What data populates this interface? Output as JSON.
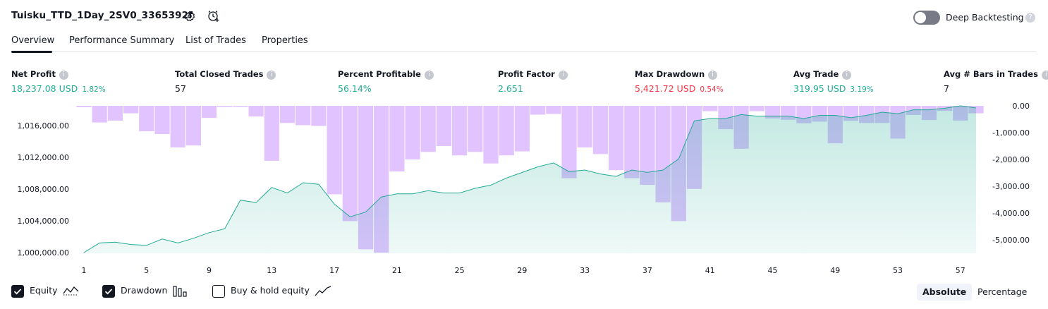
{
  "header": {
    "strategy_title": "Tuisku_TTD_1Day_2SV0_3365392f",
    "deep_backtesting_label": "Deep Backtesting",
    "deep_backtesting_enabled": false,
    "help_glyph": "?"
  },
  "tabs": [
    {
      "label": "Overview",
      "active": true
    },
    {
      "label": "Performance Summary",
      "active": false
    },
    {
      "label": "List of Trades",
      "active": false
    },
    {
      "label": "Properties",
      "active": false
    }
  ],
  "metrics": [
    {
      "label": "Net Profit",
      "value": "18,237.08 USD",
      "pct": "1.82%",
      "color": "#22ab94"
    },
    {
      "label": "Total Closed Trades",
      "value": "57",
      "pct": "",
      "color": "#131722"
    },
    {
      "label": "Percent Profitable",
      "value": "56.14%",
      "pct": "",
      "color": "#22ab94"
    },
    {
      "label": "Profit Factor",
      "value": "2.651",
      "pct": "",
      "color": "#22ab94"
    },
    {
      "label": "Max Drawdown",
      "value": "5,421.72 USD",
      "pct": "0.54%",
      "color": "#f23645"
    },
    {
      "label": "Avg Trade",
      "value": "319.95 USD",
      "pct": "3.19%",
      "color": "#22ab94"
    },
    {
      "label": "Avg # Bars in Trades",
      "value": "7",
      "pct": "",
      "color": "#131722"
    }
  ],
  "chart_data": {
    "type": "line",
    "x_ticks": [
      "1",
      "5",
      "9",
      "13",
      "17",
      "21",
      "25",
      "29",
      "33",
      "37",
      "41",
      "45",
      "49",
      "53",
      "57"
    ],
    "left_axis": {
      "ticks": [
        "1,016,000.00",
        "1,012,000.00",
        "1,008,000.00",
        "1,004,000.00",
        "1,000,000.00"
      ],
      "ylim": [
        999900,
        1018500
      ]
    },
    "right_axis": {
      "ticks": [
        "0.00",
        "-1,000.00",
        "-2,000.00",
        "-3,000.00",
        "-4,000.00",
        "-5,000.00"
      ],
      "ylim": [
        -5500,
        0
      ]
    },
    "series": [
      {
        "name": "Equity",
        "color": "#22ab94",
        "x": [
          1,
          2,
          3,
          4,
          5,
          6,
          7,
          8,
          9,
          10,
          11,
          12,
          13,
          14,
          15,
          16,
          17,
          18,
          19,
          20,
          21,
          22,
          23,
          24,
          25,
          26,
          27,
          28,
          29,
          30,
          31,
          32,
          33,
          34,
          35,
          36,
          37,
          38,
          39,
          40,
          41,
          42,
          43,
          44,
          45,
          46,
          47,
          48,
          49,
          50,
          51,
          52,
          53,
          54,
          55,
          56,
          57,
          58
        ],
        "values": [
          1000000,
          1001200,
          1001300,
          1001000,
          1000900,
          1001700,
          1001200,
          1001800,
          1002500,
          1003000,
          1006600,
          1006300,
          1008200,
          1007500,
          1008800,
          1008600,
          1006100,
          1004500,
          1005100,
          1007000,
          1007400,
          1007400,
          1007800,
          1007500,
          1007500,
          1008100,
          1008500,
          1009400,
          1010100,
          1010800,
          1011300,
          1010200,
          1010400,
          1009900,
          1009600,
          1010400,
          1010100,
          1010400,
          1011800,
          1016600,
          1016900,
          1016900,
          1017400,
          1017200,
          1017200,
          1017200,
          1016900,
          1017300,
          1017300,
          1017000,
          1017300,
          1017700,
          1017500,
          1018000,
          1018000,
          1018200,
          1018500,
          1018237
        ]
      },
      {
        "name": "Drawdown",
        "color": "#e0c3ff",
        "x": [
          1,
          2,
          3,
          4,
          5,
          6,
          7,
          8,
          9,
          10,
          11,
          12,
          13,
          14,
          15,
          16,
          17,
          18,
          19,
          20,
          21,
          22,
          23,
          24,
          25,
          26,
          27,
          28,
          29,
          30,
          31,
          32,
          33,
          34,
          35,
          36,
          37,
          38,
          39,
          40,
          41,
          42,
          43,
          44,
          45,
          46,
          47,
          48,
          49,
          50,
          51,
          52,
          53,
          54,
          55,
          56,
          57,
          58
        ],
        "values": [
          -50,
          -620,
          -550,
          -280,
          -950,
          -1050,
          -1550,
          -1480,
          -450,
          -40,
          -40,
          -400,
          -2050,
          -640,
          -720,
          -750,
          -3300,
          -4300,
          -5350,
          -5480,
          -2450,
          -2000,
          -1720,
          -1500,
          -1850,
          -1720,
          -2150,
          -1850,
          -1700,
          -330,
          -300,
          -2700,
          -1550,
          -1800,
          -2400,
          -2700,
          -2950,
          -3600,
          -4300,
          -3100,
          -200,
          -870,
          -1600,
          -200,
          -470,
          -520,
          -650,
          -590,
          -1400,
          -560,
          -640,
          -640,
          -1220,
          -340,
          -530,
          -190,
          -550,
          -280
        ]
      },
      {
        "name": "Buy & hold equity",
        "color": "#131722",
        "x": [],
        "values": []
      }
    ],
    "legend": [
      "Equity",
      "Drawdown",
      "Buy & hold equity"
    ],
    "grid": false
  },
  "legend": {
    "equity_label": "Equity",
    "drawdown_label": "Drawdown",
    "buyhold_label": "Buy & hold equity",
    "equity_checked": true,
    "drawdown_checked": true,
    "buyhold_checked": false
  },
  "modes": {
    "absolute_label": "Absolute",
    "percentage_label": "Percentage",
    "active": "Absolute"
  }
}
